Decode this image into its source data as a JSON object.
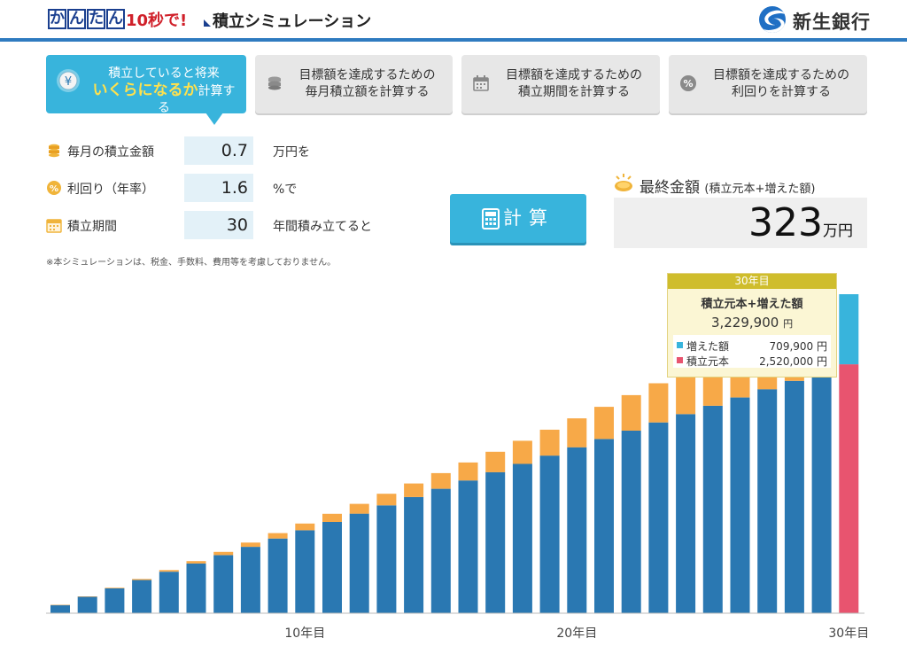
{
  "header": {
    "kana": [
      "か",
      "ん",
      "た",
      "ん"
    ],
    "tag_10s": "10秒で!",
    "title": "積立シミュレーション",
    "bank_name": "新生銀行",
    "accent": "#2f7bc0",
    "brand_blue": "#1a3f8f"
  },
  "tabs": [
    {
      "line1": "積立していると将来",
      "line2_highlight": "いくらになるか",
      "line2_rest": "計算する",
      "icon": "yen-coin-icon",
      "active": true
    },
    {
      "line1": "目標額を達成するための",
      "line2": "毎月積立額を計算する",
      "icon": "coin-stack-icon",
      "active": false
    },
    {
      "line1": "目標額を達成するための",
      "line2": "積立期間を計算する",
      "icon": "calendar-icon",
      "active": false
    },
    {
      "line1": "目標額を達成するための",
      "line2": "利回りを計算する",
      "icon": "percent-icon",
      "active": false
    }
  ],
  "form": {
    "monthly": {
      "label": "毎月の積立金額",
      "value": "0.7",
      "unit": "万円を",
      "icon": "coin-stack-icon"
    },
    "rate": {
      "label": "利回り（年率）",
      "value": "1.6",
      "unit": "%で",
      "icon": "percent-coin-icon"
    },
    "period": {
      "label": "積立期間",
      "value": "30",
      "unit": "年間積み立てると",
      "icon": "calendar-icon"
    }
  },
  "note": "※本シミュレーションは、税金、手数料、費用等を考慮しておりません。",
  "calc_button": "計算",
  "result": {
    "label": "最終金額",
    "label_sub": "(積立元本+増えた額)",
    "value": "323",
    "unit": "万円"
  },
  "tooltip": {
    "year": "30年目",
    "title": "積立元本+増えた額",
    "total": "3,229,900",
    "total_unit": "円",
    "gain_label": "増えた額",
    "gain_value": "709,900 円",
    "principal_label": "積立元本",
    "principal_value": "2,520,000 円"
  },
  "chart_data": {
    "type": "bar",
    "stacked": true,
    "categories": [
      1,
      2,
      3,
      4,
      5,
      6,
      7,
      8,
      9,
      10,
      11,
      12,
      13,
      14,
      15,
      16,
      17,
      18,
      19,
      20,
      21,
      22,
      23,
      24,
      25,
      26,
      27,
      28,
      29,
      30
    ],
    "x_tick_labels": [
      {
        "index": 9,
        "label": "10年目"
      },
      {
        "index": 19,
        "label": "20年目"
      },
      {
        "index": 29,
        "label": "30年目"
      }
    ],
    "ylim": [
      0,
      3229900
    ],
    "series": [
      {
        "name": "積立元本",
        "color": "#2a78b2",
        "highlight_color": "#e8546f",
        "values": [
          84000,
          168000,
          252000,
          336000,
          420000,
          504000,
          588000,
          672000,
          756000,
          840000,
          924000,
          1008000,
          1092000,
          1176000,
          1260000,
          1344000,
          1428000,
          1512000,
          1596000,
          1680000,
          1764000,
          1848000,
          1932000,
          2016000,
          2100000,
          2184000,
          2268000,
          2352000,
          2436000,
          2520000
        ]
      },
      {
        "name": "増えた額",
        "color": "#f7a948",
        "highlight_color": "#38b4dc",
        "values": [
          700,
          2700,
          6000,
          10600,
          16500,
          23800,
          32600,
          42900,
          54700,
          68000,
          82900,
          99300,
          117400,
          137200,
          158700,
          181900,
          206900,
          233800,
          262500,
          293100,
          325600,
          360100,
          396600,
          435200,
          475900,
          518800,
          563900,
          611200,
          660900,
          709900
        ]
      }
    ]
  }
}
